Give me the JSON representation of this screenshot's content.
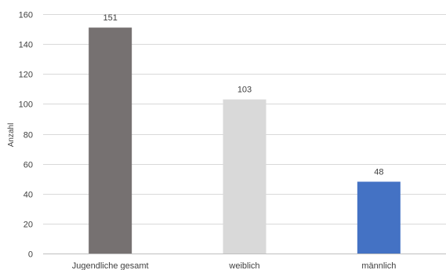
{
  "chart_data": {
    "type": "bar",
    "title": "",
    "xlabel": "",
    "ylabel": "Anzahl",
    "categories": [
      "Jugendliche gesamt",
      "weiblich",
      "männlich"
    ],
    "values": [
      151,
      103,
      48
    ],
    "data_labels": [
      "151",
      "103",
      "48"
    ],
    "colors": [
      "#767171",
      "#d9d9d9",
      "#4472c4"
    ],
    "ylim": [
      0,
      160
    ],
    "yticks": [
      0,
      20,
      40,
      60,
      80,
      100,
      120,
      140,
      160
    ],
    "grid": true,
    "legend": "none"
  }
}
